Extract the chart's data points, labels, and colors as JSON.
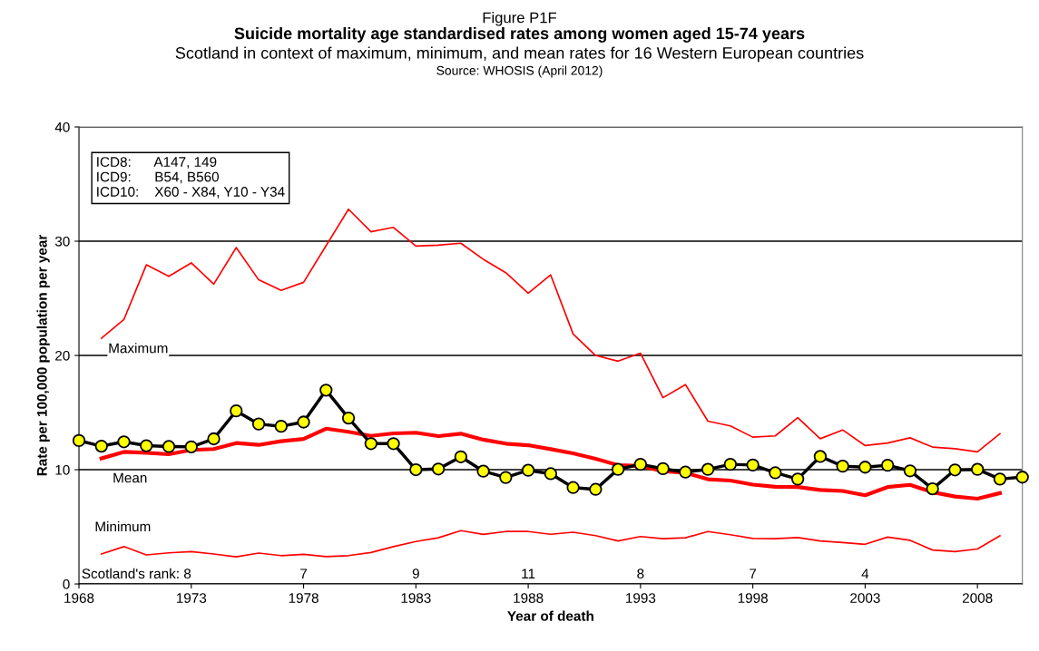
{
  "chart_data": {
    "type": "line",
    "title": "Suicide mortality age standardised rates among women aged 15-74 years",
    "subtitle": "Scotland in context of maximum, minimum, and mean rates for 16 Western European countries",
    "xlabel": "Year of death",
    "ylabel": "Rate per 100,000 population per year",
    "annotations": [
      "Figure P1F",
      "Source: WHOSIS (April 2012)",
      "ICD8:      A147, 149\nICD9:      B54, B560\nICD10:    X60 - X84, Y10 - Y34",
      "Scotland's rank: 8",
      "7",
      "9",
      "11",
      "8",
      "7",
      "4"
    ],
    "x": [
      1968,
      1969,
      1970,
      1971,
      1972,
      1973,
      1974,
      1975,
      1976,
      1977,
      1978,
      1979,
      1980,
      1981,
      1982,
      1983,
      1984,
      1985,
      1986,
      1987,
      1988,
      1989,
      1990,
      1991,
      1992,
      1993,
      1994,
      1995,
      1996,
      1997,
      1998,
      1999,
      2000,
      2001,
      2002,
      2003,
      2004,
      2005,
      2006,
      2007,
      2008,
      2009,
      2010
    ],
    "series": [
      {
        "color": "#000000",
        "marker": "circle",
        "values": [
          12.55,
          12.06,
          12.44,
          12.1,
          12.03,
          12.0,
          12.7,
          15.15,
          14.0,
          13.8,
          14.17,
          16.96,
          14.52,
          12.28,
          12.28,
          10.0,
          10.06,
          11.13,
          9.87,
          9.32,
          9.95,
          9.65,
          8.44,
          8.28,
          10.03,
          10.47,
          10.09,
          9.79,
          10.03,
          10.47,
          10.41,
          9.73,
          9.18,
          11.16,
          10.31,
          10.22,
          10.39,
          9.9,
          8.33,
          9.98,
          10.03,
          9.18,
          9.35
        ]
      },
      {
        "name": "Maximum",
        "color": "#ff0000",
        "values": [
          null,
          21.5,
          23.14,
          27.93,
          26.92,
          28.1,
          26.24,
          29.44,
          26.62,
          25.69,
          26.4,
          29.6,
          32.8,
          30.83,
          31.21,
          29.57,
          29.66,
          29.82,
          28.42,
          27.25,
          25.44,
          27.05,
          21.88,
          20.0,
          19.5,
          20.2,
          16.3,
          17.45,
          14.25,
          13.83,
          12.85,
          12.96,
          14.55,
          12.71,
          13.48,
          12.11,
          12.33,
          12.79,
          11.98,
          11.84,
          11.56,
          13.15,
          null
        ]
      },
      {
        "name": "Mean",
        "color": "#ff0000",
        "values": [
          null,
          10.99,
          11.56,
          11.48,
          11.35,
          11.73,
          11.81,
          12.33,
          12.17,
          12.49,
          12.69,
          13.59,
          13.32,
          12.96,
          13.18,
          13.24,
          12.94,
          13.15,
          12.63,
          12.28,
          12.14,
          11.8,
          11.43,
          10.96,
          10.39,
          10.33,
          9.87,
          9.73,
          9.16,
          9.05,
          8.69,
          8.5,
          8.48,
          8.23,
          8.14,
          7.76,
          8.48,
          8.67,
          8.03,
          7.65,
          7.46,
          7.95,
          null
        ]
      },
      {
        "name": "Minimum",
        "color": "#ff0000",
        "values": [
          null,
          2.62,
          3.27,
          2.54,
          2.72,
          2.83,
          2.62,
          2.37,
          2.7,
          2.48,
          2.59,
          2.4,
          2.48,
          2.75,
          3.27,
          3.71,
          4.04,
          4.67,
          4.34,
          4.59,
          4.59,
          4.35,
          4.53,
          4.23,
          3.76,
          4.15,
          3.96,
          4.04,
          4.59,
          4.31,
          3.98,
          3.96,
          4.06,
          3.76,
          3.63,
          3.47,
          4.1,
          3.82,
          2.97,
          2.83,
          3.06,
          4.21,
          null
        ]
      }
    ],
    "xlim": [
      1968,
      2010
    ],
    "xticks": [
      1968,
      1973,
      1978,
      1983,
      1988,
      1993,
      1998,
      2003,
      2008
    ],
    "ylim": [
      0,
      40
    ],
    "yticks": [
      0,
      10,
      20,
      30,
      40
    ],
    "grid": "y",
    "legend": false
  }
}
